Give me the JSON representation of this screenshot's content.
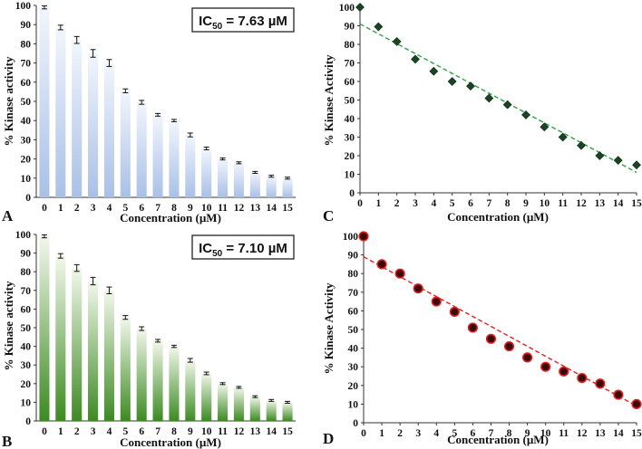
{
  "chart_data": [
    {
      "panel": "A",
      "type": "bar",
      "categories": [
        "0",
        "1",
        "2",
        "3",
        "4",
        "5",
        "6",
        "7",
        "8",
        "9",
        "10",
        "11",
        "12",
        "13",
        "14",
        "15"
      ],
      "values": [
        99,
        88.5,
        82,
        75,
        70,
        55.5,
        49.5,
        43,
        40,
        32.5,
        25.5,
        20,
        18,
        13,
        11,
        10
      ],
      "errors": [
        0.8,
        1.2,
        1.8,
        2,
        1.8,
        1,
        1,
        0.7,
        0.6,
        1,
        0.7,
        0.5,
        0.5,
        0.5,
        0.5,
        0.5
      ],
      "xlabel": "Concentration (µM)",
      "ylabel": "% Kinase activity",
      "ylim": [
        0,
        100
      ],
      "yticks": [
        0,
        10,
        20,
        30,
        40,
        50,
        60,
        70,
        80,
        90,
        100
      ],
      "annotation": {
        "prefix": "IC",
        "sub": "50",
        "text": " = 7.63 µM"
      },
      "colors": {
        "top": "#f2f6fd",
        "bottom": "#a9c0e6"
      }
    },
    {
      "panel": "B",
      "type": "bar",
      "categories": [
        "0",
        "1",
        "2",
        "3",
        "4",
        "5",
        "6",
        "7",
        "8",
        "9",
        "10",
        "11",
        "12",
        "13",
        "14",
        "15"
      ],
      "values": [
        99,
        88.5,
        82,
        75,
        70,
        55.5,
        49.5,
        43,
        40,
        32.5,
        25.5,
        20,
        18,
        13,
        11,
        10
      ],
      "errors": [
        0.8,
        1.2,
        1.8,
        2,
        1.8,
        1,
        1,
        0.7,
        0.6,
        1,
        0.7,
        0.5,
        0.5,
        0.5,
        0.5,
        0.5
      ],
      "xlabel": "Concentration (µM)",
      "ylabel": "% Kinase activity",
      "ylim": [
        0,
        100
      ],
      "yticks": [
        0,
        10,
        20,
        30,
        40,
        50,
        60,
        70,
        80,
        90,
        100
      ],
      "annotation": {
        "prefix": "IC",
        "sub": "50",
        "text": " = 7.10 µM"
      },
      "colors": {
        "top": "#f3f8ec",
        "bottom": "#3c8a22"
      }
    },
    {
      "panel": "C",
      "type": "scatter",
      "marker": "diamond",
      "x": [
        0,
        1,
        2,
        3,
        4,
        5,
        6,
        7,
        8,
        9,
        10,
        11,
        12,
        13,
        14,
        15
      ],
      "y": [
        100,
        89.5,
        81.5,
        72,
        65.5,
        60,
        57.5,
        51,
        47.5,
        42,
        35.5,
        30,
        25.5,
        20,
        17.5,
        15
      ],
      "trendline": {
        "from": [
          0,
          91
        ],
        "to": [
          15,
          11
        ],
        "color": "#2ea043"
      },
      "xlabel": "Concentration (µM)",
      "ylabel": "% Kinase Activity",
      "xlim": [
        0,
        15
      ],
      "ylim": [
        0,
        100
      ],
      "yticks": [
        0,
        10,
        20,
        30,
        40,
        50,
        60,
        70,
        80,
        90,
        100
      ],
      "colors": {
        "marker": "#1c4424"
      }
    },
    {
      "panel": "D",
      "type": "scatter",
      "marker": "circle",
      "x": [
        0,
        1,
        2,
        3,
        4,
        5,
        6,
        7,
        8,
        9,
        10,
        11,
        12,
        13,
        14,
        15
      ],
      "y": [
        100,
        85,
        80,
        72,
        65,
        59.5,
        51,
        45,
        41,
        35,
        30,
        27.5,
        24,
        21,
        15,
        10
      ],
      "trendline": {
        "from": [
          0,
          89
        ],
        "to": [
          15,
          9
        ],
        "color": "#e02020"
      },
      "xlabel": "Concentration (µM)",
      "ylabel": "% Kinase Activity",
      "xlim": [
        0,
        15
      ],
      "ylim": [
        0,
        100
      ],
      "yticks": [
        0,
        10,
        20,
        30,
        40,
        50,
        60,
        70,
        80,
        90,
        100
      ],
      "colors": {
        "marker": "#3a0a0a",
        "edge": "#e02020"
      }
    }
  ]
}
